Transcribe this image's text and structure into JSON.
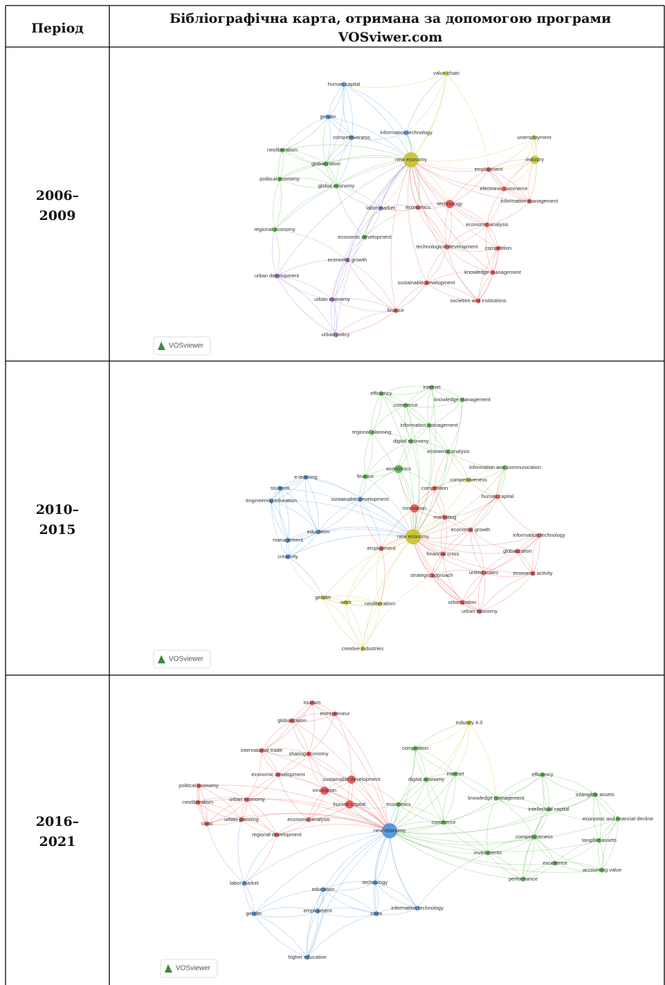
{
  "header": {
    "period": "Період",
    "title": [
      "Бібліографічна карта, отримана за допомогою програми",
      "VOSviwer.com"
    ]
  },
  "rows": [
    {
      "period": [
        "2006–",
        "2009"
      ],
      "logo": "VOSviewer",
      "nodes": [
        {
          "label": "human capital",
          "color": "#4a90d9"
        },
        {
          "label": "value chain",
          "color": "#c8c32a"
        },
        {
          "label": "gender",
          "color": "#4a90d9"
        },
        {
          "label": "information technology",
          "color": "#4a90d9"
        },
        {
          "label": "competitiveness",
          "color": "#4a90d9"
        },
        {
          "label": "unemployment",
          "color": "#c8c32a"
        },
        {
          "label": "neoliberalism",
          "color": "#57b846"
        },
        {
          "label": "new economy",
          "color": "#c8c32a"
        },
        {
          "label": "industry",
          "color": "#c8c32a"
        },
        {
          "label": "globalization",
          "color": "#57b846"
        },
        {
          "label": "employment",
          "color": "#e8504f"
        },
        {
          "label": "political economy",
          "color": "#57b846"
        },
        {
          "label": "global economy",
          "color": "#57b846"
        },
        {
          "label": "electronic commerce",
          "color": "#e8504f"
        },
        {
          "label": "information management",
          "color": "#e8504f"
        },
        {
          "label": "labor market",
          "color": "#9b6ad0"
        },
        {
          "label": "economics",
          "color": "#e8504f"
        },
        {
          "label": "technology",
          "color": "#e8504f"
        },
        {
          "label": "economic analysis",
          "color": "#e8504f"
        },
        {
          "label": "regional economy",
          "color": "#57b846"
        },
        {
          "label": "economic development",
          "color": "#57b846"
        },
        {
          "label": "technological development",
          "color": "#e8504f"
        },
        {
          "label": "competition",
          "color": "#e8504f"
        },
        {
          "label": "economic growth",
          "color": "#9b6ad0"
        },
        {
          "label": "urban development",
          "color": "#9b6ad0"
        },
        {
          "label": "knowledge management",
          "color": "#e8504f"
        },
        {
          "label": "sustainable development",
          "color": "#e8504f"
        },
        {
          "label": "urban economy",
          "color": "#9b6ad0"
        },
        {
          "label": "societies and institutions",
          "color": "#e8504f"
        },
        {
          "label": "finance",
          "color": "#e8504f"
        },
        {
          "label": "urban policy",
          "color": "#9b6ad0"
        }
      ]
    },
    {
      "period": [
        "2010–",
        "2015"
      ],
      "logo": "VOSviewer",
      "nodes": [
        {
          "label": "internet",
          "color": "#57b846"
        },
        {
          "label": "efficiency",
          "color": "#57b846"
        },
        {
          "label": "knowledge management",
          "color": "#57b846"
        },
        {
          "label": "commerce",
          "color": "#57b846"
        },
        {
          "label": "information management",
          "color": "#57b846"
        },
        {
          "label": "regional planning",
          "color": "#57b846"
        },
        {
          "label": "digital economy",
          "color": "#57b846"
        },
        {
          "label": "economic analysis",
          "color": "#57b846"
        },
        {
          "label": "economics",
          "color": "#57b846"
        },
        {
          "label": "information and communication",
          "color": "#57b846"
        },
        {
          "label": "e-learning",
          "color": "#4a90d9"
        },
        {
          "label": "finance",
          "color": "#57b846"
        },
        {
          "label": "competitiveness",
          "color": "#c8c32a"
        },
        {
          "label": "students",
          "color": "#4a90d9"
        },
        {
          "label": "competition",
          "color": "#e8504f"
        },
        {
          "label": "human capital",
          "color": "#e8504f"
        },
        {
          "label": "engineering education",
          "color": "#4a90d9"
        },
        {
          "label": "sustainable development",
          "color": "#4a90d9"
        },
        {
          "label": "innovation",
          "color": "#e8504f"
        },
        {
          "label": "marketing",
          "color": "#e8504f"
        },
        {
          "label": "education",
          "color": "#4a90d9"
        },
        {
          "label": "economic growth",
          "color": "#e8504f"
        },
        {
          "label": "new economy",
          "color": "#c8c32a"
        },
        {
          "label": "information technology",
          "color": "#e8504f"
        },
        {
          "label": "management",
          "color": "#4a90d9"
        },
        {
          "label": "employment",
          "color": "#e8504f"
        },
        {
          "label": "financial crisis",
          "color": "#e8504f"
        },
        {
          "label": "globalization",
          "color": "#e8504f"
        },
        {
          "label": "creativity",
          "color": "#4a90d9"
        },
        {
          "label": "strategic approach",
          "color": "#e8504f"
        },
        {
          "label": "united states",
          "color": "#e8504f"
        },
        {
          "label": "economic activity",
          "color": "#e8504f"
        },
        {
          "label": "gender",
          "color": "#c8c32a"
        },
        {
          "label": "work",
          "color": "#c8c32a"
        },
        {
          "label": "neoliberalism",
          "color": "#c8c32a"
        },
        {
          "label": "urbanization",
          "color": "#e8504f"
        },
        {
          "label": "urban economy",
          "color": "#e8504f"
        },
        {
          "label": "creative industries",
          "color": "#c8c32a"
        }
      ]
    },
    {
      "period": [
        "2016–",
        "2021"
      ],
      "logo": "VOSviewer",
      "nodes": [
        {
          "label": "tourism",
          "color": "#e8504f"
        },
        {
          "label": "entrepreneur",
          "color": "#e8504f"
        },
        {
          "label": "globalization",
          "color": "#e8504f"
        },
        {
          "label": "industry 4.0",
          "color": "#c8c32a"
        },
        {
          "label": "international trade",
          "color": "#e8504f"
        },
        {
          "label": "competition",
          "color": "#57b846"
        },
        {
          "label": "sharing economy",
          "color": "#e8504f"
        },
        {
          "label": "internet",
          "color": "#57b846"
        },
        {
          "label": "efficiency",
          "color": "#57b846"
        },
        {
          "label": "economic development",
          "color": "#e8504f"
        },
        {
          "label": "sustainable development",
          "color": "#e8504f"
        },
        {
          "label": "digital economy",
          "color": "#57b846"
        },
        {
          "label": "political economy",
          "color": "#e8504f"
        },
        {
          "label": "innovation",
          "color": "#e8504f"
        },
        {
          "label": "intangible assets",
          "color": "#57b846"
        },
        {
          "label": "knowledge management",
          "color": "#57b846"
        },
        {
          "label": "neoliberalism",
          "color": "#e8504f"
        },
        {
          "label": "urban economy",
          "color": "#e8504f"
        },
        {
          "label": "human capital",
          "color": "#e8504f"
        },
        {
          "label": "economics",
          "color": "#57b846"
        },
        {
          "label": "intellectual capital",
          "color": "#57b846"
        },
        {
          "label": "class",
          "color": "#e8504f"
        },
        {
          "label": "urban planning",
          "color": "#e8504f"
        },
        {
          "label": "economic analysis",
          "color": "#e8504f"
        },
        {
          "label": "commerce",
          "color": "#57b846"
        },
        {
          "label": "economic and financial decline",
          "color": "#57b846"
        },
        {
          "label": "new economy",
          "color": "#4a90d9"
        },
        {
          "label": "regional development",
          "color": "#e8504f"
        },
        {
          "label": "competitiveness",
          "color": "#57b846"
        },
        {
          "label": "tangible assets",
          "color": "#57b846"
        },
        {
          "label": "investments",
          "color": "#57b846"
        },
        {
          "label": "excellence",
          "color": "#57b846"
        },
        {
          "label": "accounting value",
          "color": "#57b846"
        },
        {
          "label": "performance",
          "color": "#57b846"
        },
        {
          "label": "labor market",
          "color": "#4a90d9"
        },
        {
          "label": "technology",
          "color": "#4a90d9"
        },
        {
          "label": "education",
          "color": "#4a90d9"
        },
        {
          "label": "information technology",
          "color": "#4a90d9"
        },
        {
          "label": "gender",
          "color": "#4a90d9"
        },
        {
          "label": "employment",
          "color": "#4a90d9"
        },
        {
          "label": "cities",
          "color": "#4a90d9"
        },
        {
          "label": "higher education",
          "color": "#4a90d9"
        }
      ]
    }
  ]
}
